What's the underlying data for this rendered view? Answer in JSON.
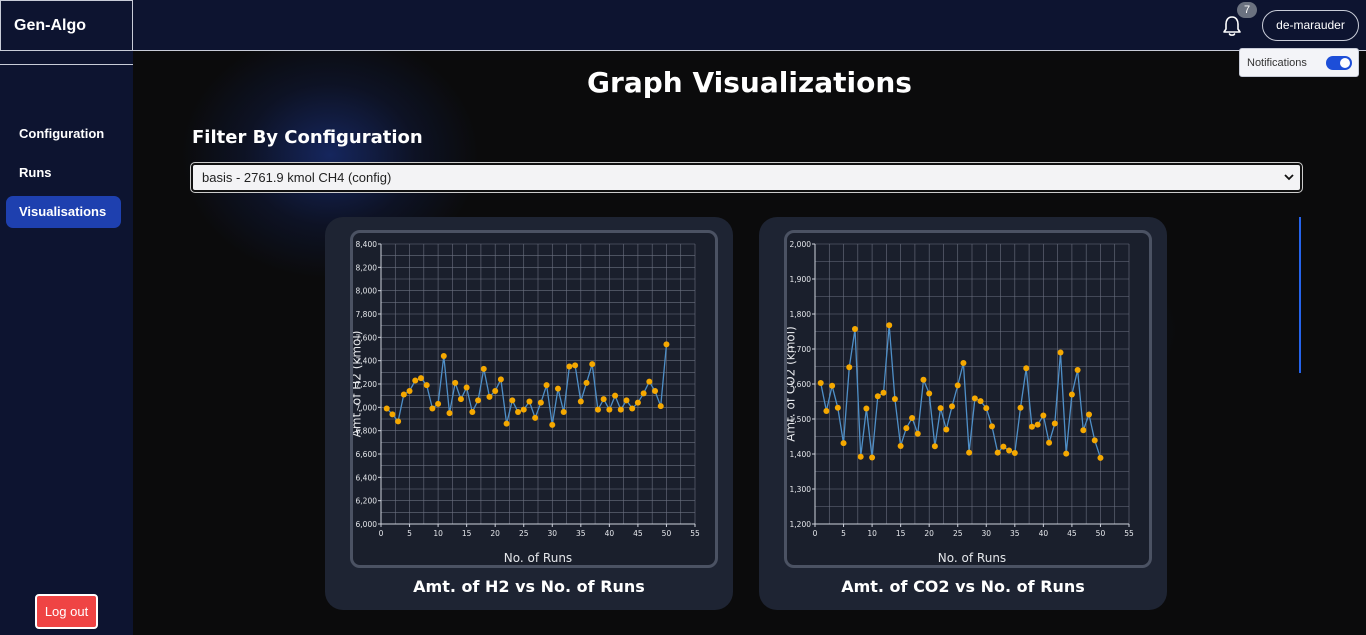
{
  "brand": "Gen-Algo",
  "topbar": {
    "notification_count": "7",
    "user_label": "de-marauder",
    "notifications_label": "Notifications"
  },
  "sidebar": {
    "items": [
      {
        "label": "Configuration",
        "active": false
      },
      {
        "label": "Runs",
        "active": false
      },
      {
        "label": "Visualisations",
        "active": true
      }
    ],
    "logout_label": "Log out"
  },
  "main": {
    "title": "Graph Visualizations",
    "filter_title": "Filter By Configuration",
    "selected_config": "basis - 2761.9 kmol CH4 (config)"
  },
  "chart_data": [
    {
      "type": "line",
      "title": "Amt. of H2 vs No. of Runs",
      "xlabel": "No. of Runs",
      "ylabel": "Amt. of H2 (kmol)",
      "xlim": [
        0,
        55
      ],
      "ylim": [
        6000,
        8400
      ],
      "xticks": [
        0,
        5,
        10,
        15,
        20,
        25,
        30,
        35,
        40,
        45,
        50,
        55
      ],
      "yticks": [
        "6,000",
        "6,200",
        "6,400",
        "6,600",
        "6,800",
        "7,000",
        "7,200",
        "7,400",
        "7,600",
        "7,800",
        "8,000",
        "8,200",
        "8,400"
      ],
      "ytick_values": [
        6000,
        6200,
        6400,
        6600,
        6800,
        7000,
        7200,
        7400,
        7600,
        7800,
        8000,
        8200,
        8400
      ],
      "x": [
        1,
        2,
        3,
        4,
        5,
        6,
        7,
        8,
        9,
        10,
        11,
        12,
        13,
        14,
        15,
        16,
        17,
        18,
        19,
        20,
        21,
        22,
        23,
        24,
        25,
        26,
        27,
        28,
        29,
        30,
        31,
        32,
        33,
        34,
        35,
        36,
        37,
        38,
        39,
        40,
        41,
        42,
        43,
        44,
        45,
        46,
        47,
        48,
        49,
        50
      ],
      "y": [
        6990,
        6940,
        6880,
        7110,
        7140,
        7230,
        7250,
        7190,
        6990,
        7030,
        7440,
        6950,
        7210,
        7070,
        7170,
        6960,
        7060,
        7330,
        7090,
        7140,
        7240,
        6860,
        7060,
        6960,
        6980,
        7050,
        6910,
        7040,
        7190,
        6850,
        7160,
        6960,
        7350,
        7360,
        7050,
        7210,
        7370,
        6980,
        7070,
        6980,
        7100,
        6980,
        7060,
        6990,
        7040,
        7120,
        7220,
        7140,
        7010,
        7540
      ],
      "grid": true,
      "line_color": "#4f8fc7",
      "marker_color": "#f5a800"
    },
    {
      "type": "line",
      "title": "Amt. of CO2 vs No. of Runs",
      "xlabel": "No. of Runs",
      "ylabel": "Amt. of CO2 (kmol)",
      "xlim": [
        0,
        55
      ],
      "ylim": [
        1200,
        2000
      ],
      "xticks": [
        0,
        5,
        10,
        15,
        20,
        25,
        30,
        35,
        40,
        45,
        50,
        55
      ],
      "yticks": [
        "1,200",
        "1,300",
        "1,400",
        "1,500",
        "1,600",
        "1,700",
        "1,800",
        "1,900",
        "2,000"
      ],
      "ytick_values": [
        1200,
        1300,
        1400,
        1500,
        1600,
        1700,
        1800,
        1900,
        2000
      ],
      "x": [
        1,
        2,
        3,
        4,
        5,
        6,
        7,
        8,
        9,
        10,
        11,
        12,
        13,
        14,
        15,
        16,
        17,
        18,
        19,
        20,
        21,
        22,
        23,
        24,
        25,
        26,
        27,
        28,
        29,
        30,
        31,
        32,
        33,
        34,
        35,
        36,
        37,
        38,
        39,
        40,
        41,
        42,
        43,
        44,
        45,
        46,
        47,
        48,
        49,
        50
      ],
      "y": [
        1603,
        1523,
        1595,
        1532,
        1431,
        1648,
        1757,
        1392,
        1530,
        1390,
        1565,
        1575,
        1768,
        1557,
        1423,
        1474,
        1503,
        1458,
        1612,
        1573,
        1422,
        1531,
        1470,
        1536,
        1596,
        1660,
        1404,
        1559,
        1551,
        1531,
        1479,
        1404,
        1421,
        1410,
        1403,
        1532,
        1645,
        1478,
        1484,
        1510,
        1432,
        1487,
        1690,
        1401,
        1570,
        1640,
        1468,
        1513,
        1439,
        1389
      ],
      "grid": true,
      "line_color": "#4f8fc7",
      "marker_color": "#f5a800"
    }
  ]
}
